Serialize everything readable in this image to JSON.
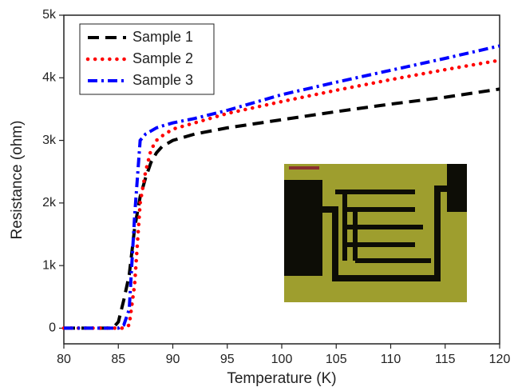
{
  "chart_data": {
    "type": "line",
    "x_label": "Temperature (K)",
    "y_label": "Resistance (ohm)",
    "x": [
      80,
      81,
      82,
      83,
      84,
      84.5,
      85,
      85.5,
      86,
      86.5,
      87,
      87.5,
      88,
      88.5,
      89,
      90,
      92,
      95,
      100,
      105,
      110,
      115,
      120
    ],
    "series": [
      {
        "name": "Sample 1",
        "color": "#000000",
        "style": "dash",
        "values": [
          0,
          0,
          0,
          0,
          0,
          0,
          100,
          450,
          850,
          1600,
          2100,
          2400,
          2650,
          2800,
          2900,
          3000,
          3100,
          3200,
          3330,
          3460,
          3580,
          3690,
          3820
        ]
      },
      {
        "name": "Sample 2",
        "color": "#ff0000",
        "style": "dot",
        "values": [
          0,
          0,
          0,
          0,
          0,
          0,
          0,
          0,
          50,
          700,
          2000,
          2500,
          2850,
          3000,
          3070,
          3180,
          3280,
          3430,
          3620,
          3800,
          3970,
          4130,
          4280
        ]
      },
      {
        "name": "Sample 3",
        "color": "#0000ff",
        "style": "dashdot",
        "values": [
          0,
          0,
          0,
          0,
          0,
          0,
          0,
          50,
          300,
          1800,
          3000,
          3100,
          3150,
          3200,
          3230,
          3280,
          3350,
          3480,
          3730,
          3930,
          4120,
          4310,
          4510
        ]
      }
    ],
    "xlim": [
      80,
      120
    ],
    "xticks": [
      80,
      85,
      90,
      95,
      100,
      105,
      110,
      115,
      120
    ],
    "ylim": [
      -250,
      5000
    ],
    "yticks": [
      0,
      {
        "value": 1000,
        "label": "1k"
      },
      {
        "value": 2000,
        "label": "2k"
      },
      {
        "value": 3000,
        "label": "3k"
      },
      {
        "value": 4000,
        "label": "4k"
      },
      {
        "value": 5000,
        "label": "5k"
      }
    ],
    "legend": "upper-left"
  }
}
